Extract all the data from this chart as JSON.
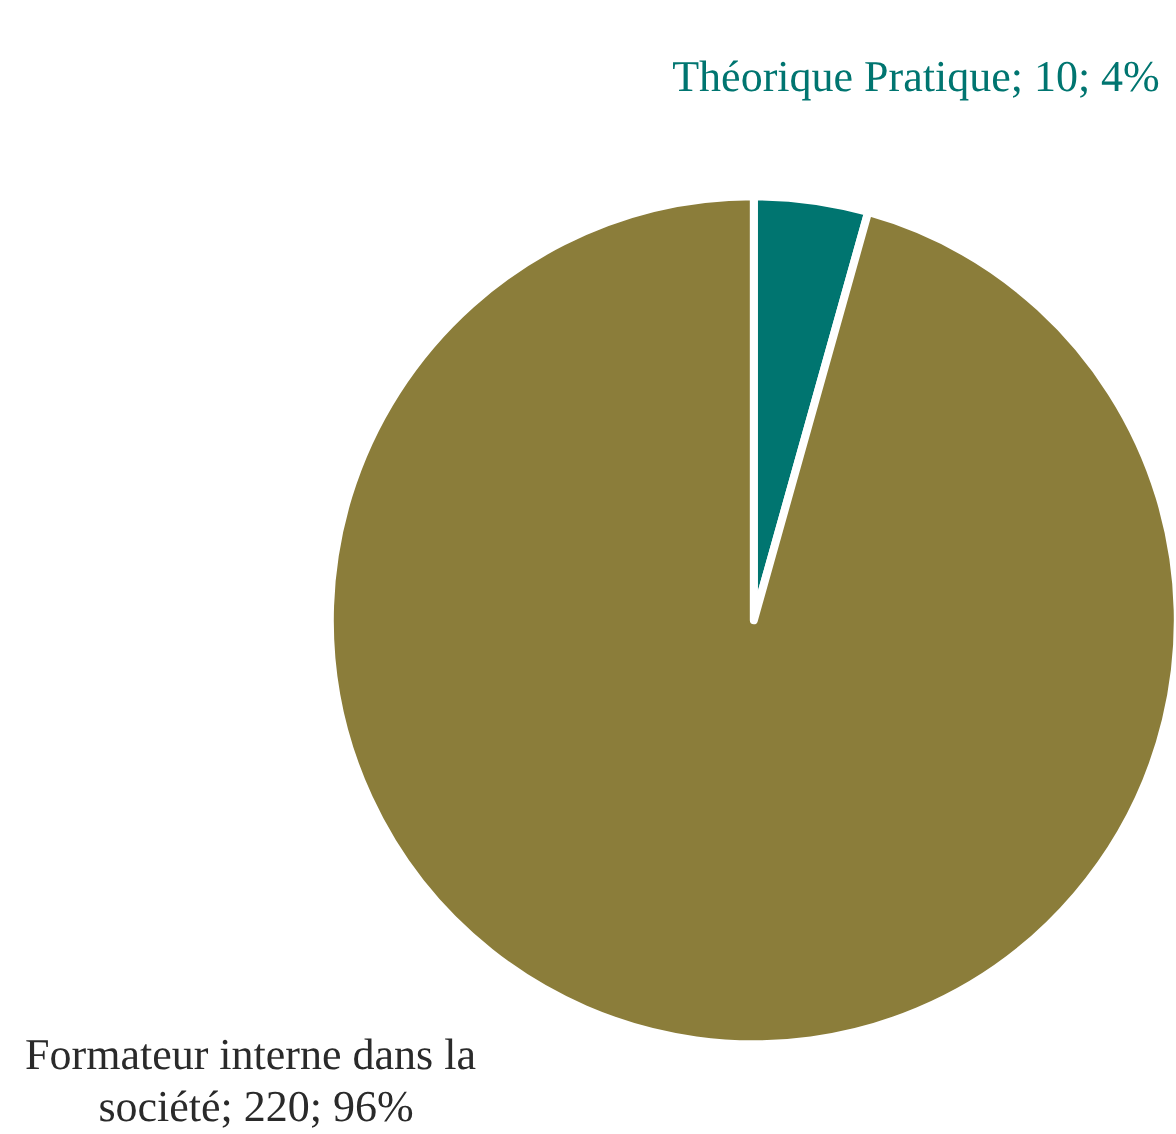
{
  "chart_data": {
    "type": "pie",
    "categories": [
      "Théorique Pratique",
      "Formateur interne dans la société"
    ],
    "values": [
      10,
      220
    ],
    "colors": [
      "#007570",
      "#8b7d3a"
    ],
    "value_labels": [
      "10; 4%",
      "220; 96%"
    ],
    "legend": false
  }
}
